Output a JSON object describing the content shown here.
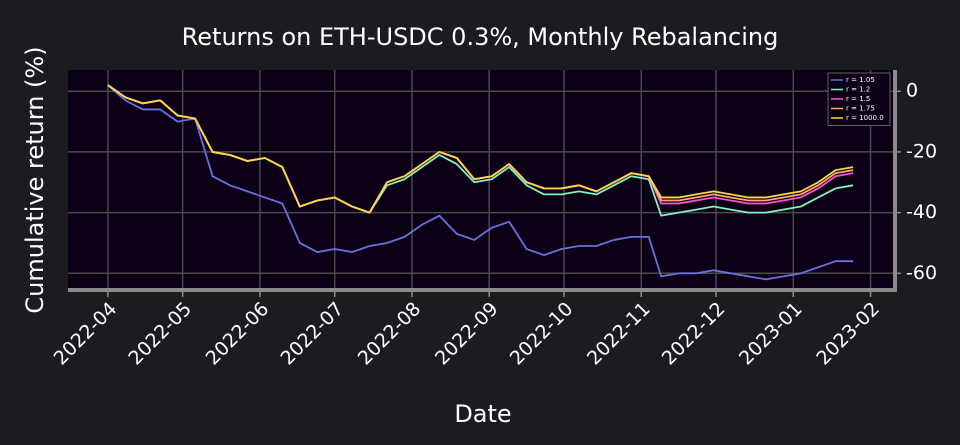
{
  "chart_data": {
    "type": "line",
    "title": "Returns on ETH-USDC 0.3%, Monthly Rebalancing",
    "x_label": "Date",
    "y_label": "Cumulative return (%)",
    "x": [
      "2022-04-01",
      "2022-04-08",
      "2022-04-15",
      "2022-04-22",
      "2022-04-29",
      "2022-05-06",
      "2022-05-13",
      "2022-05-20",
      "2022-05-27",
      "2022-06-03",
      "2022-06-10",
      "2022-06-17",
      "2022-06-24",
      "2022-07-01",
      "2022-07-08",
      "2022-07-15",
      "2022-07-22",
      "2022-07-29",
      "2022-08-05",
      "2022-08-12",
      "2022-08-19",
      "2022-08-26",
      "2022-09-02",
      "2022-09-09",
      "2022-09-16",
      "2022-09-23",
      "2022-09-30",
      "2022-10-07",
      "2022-10-14",
      "2022-10-21",
      "2022-10-28",
      "2022-11-04",
      "2022-11-09",
      "2022-11-16",
      "2022-11-23",
      "2022-11-30",
      "2022-12-07",
      "2022-12-14",
      "2022-12-21",
      "2022-12-28",
      "2023-01-04",
      "2023-01-11",
      "2023-01-18",
      "2023-01-25"
    ],
    "series": [
      {
        "name": "r = 1.05",
        "color": "#6b6fe0",
        "values": [
          2,
          -3,
          -6,
          -6,
          -10,
          -9,
          -28,
          -31,
          -33,
          -35,
          -37,
          -50,
          -53,
          -52,
          -53,
          -51,
          -50,
          -48,
          -44,
          -41,
          -47,
          -49,
          -45,
          -43,
          -52,
          -54,
          -52,
          -51,
          -51,
          -49,
          -48,
          -48,
          -61,
          -60,
          -60,
          -59,
          -60,
          -61,
          -62,
          -61,
          -60,
          -58,
          -56,
          -56
        ]
      },
      {
        "name": "r = 1.2",
        "color": "#86f0bd",
        "values": [
          2,
          -2,
          -4,
          -3,
          -8,
          -9,
          -20,
          -21,
          -23,
          -22,
          -25,
          -38,
          -36,
          -35,
          -38,
          -40,
          -31,
          -29,
          -25,
          -21,
          -24,
          -30,
          -29,
          -25,
          -31,
          -34,
          -34,
          -33,
          -34,
          -31,
          -28,
          -29,
          -41,
          -40,
          -39,
          -38,
          -39,
          -40,
          -40,
          -39,
          -38,
          -35,
          -32,
          -31
        ]
      },
      {
        "name": "r = 1.5",
        "color": "#ff4fd8",
        "values": [
          2,
          -2,
          -4,
          -3,
          -8,
          -9,
          -20,
          -21,
          -23,
          -22,
          -25,
          -38,
          -36,
          -35,
          -38,
          -40,
          -30,
          -28,
          -24,
          -20,
          -22,
          -29,
          -28,
          -24,
          -30,
          -32,
          -32,
          -31,
          -33,
          -30,
          -27,
          -28,
          -37,
          -37,
          -36,
          -35,
          -36,
          -37,
          -37,
          -36,
          -35,
          -32,
          -28,
          -27
        ]
      },
      {
        "name": "r = 1.75",
        "color": "#ffa86a",
        "values": [
          2,
          -2,
          -4,
          -3,
          -8,
          -9,
          -20,
          -21,
          -23,
          -22,
          -25,
          -38,
          -36,
          -35,
          -38,
          -40,
          -30,
          -28,
          -24,
          -20,
          -22,
          -29,
          -28,
          -24,
          -30,
          -32,
          -32,
          -31,
          -33,
          -30,
          -27,
          -28,
          -36,
          -36,
          -35,
          -34,
          -35,
          -36,
          -36,
          -35,
          -34,
          -31,
          -27,
          -26
        ]
      },
      {
        "name": "r = 1000.0",
        "color": "#ffd54a",
        "values": [
          2,
          -2,
          -4,
          -3,
          -8,
          -9,
          -20,
          -21,
          -23,
          -22,
          -25,
          -38,
          -36,
          -35,
          -38,
          -40,
          -30,
          -28,
          -24,
          -20,
          -22,
          -29,
          -28,
          -24,
          -30,
          -32,
          -32,
          -31,
          -33,
          -30,
          -27,
          -28,
          -35,
          -35,
          -34,
          -33,
          -34,
          -35,
          -35,
          -34,
          -33,
          -30,
          -26,
          -25
        ]
      }
    ],
    "xlim": [
      "2022-03-16",
      "2023-02-10"
    ],
    "xticks": [
      {
        "value": "2022-04-01",
        "label": "2022-04"
      },
      {
        "value": "2022-05-01",
        "label": "2022-05"
      },
      {
        "value": "2022-06-01",
        "label": "2022-06"
      },
      {
        "value": "2022-07-01",
        "label": "2022-07"
      },
      {
        "value": "2022-08-01",
        "label": "2022-08"
      },
      {
        "value": "2022-09-01",
        "label": "2022-09"
      },
      {
        "value": "2022-10-01",
        "label": "2022-10"
      },
      {
        "value": "2022-11-01",
        "label": "2022-11"
      },
      {
        "value": "2022-12-01",
        "label": "2022-12"
      },
      {
        "value": "2023-01-01",
        "label": "2023-01"
      },
      {
        "value": "2023-02-01",
        "label": "2023-02"
      }
    ],
    "ylim": [
      -65.5,
      7
    ],
    "yticks": [
      0,
      -20,
      -40,
      -60
    ],
    "grid": true,
    "legend": "upper right"
  }
}
